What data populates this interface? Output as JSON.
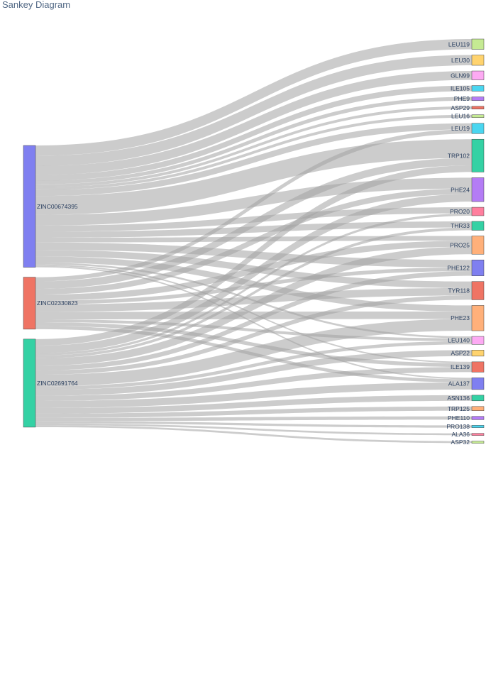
{
  "title": "Sankey Diagram",
  "colors": {
    "link": "#a3a3a3",
    "text": "#2a3f5f",
    "title": "#506784",
    "node_stroke": "#444444"
  },
  "chart_data": {
    "type": "sankey",
    "sources": [
      {
        "name": "ZINC00674395",
        "color": "#7f7ff0"
      },
      {
        "name": "ZINC02330823",
        "color": "#ef7464"
      },
      {
        "name": "ZINC02691764",
        "color": "#34d1a4"
      }
    ],
    "targets": [
      {
        "name": "LEU119",
        "color": "#c5ea93"
      },
      {
        "name": "LEU30",
        "color": "#ffd36e"
      },
      {
        "name": "GLN99",
        "color": "#fdaaf3"
      },
      {
        "name": "ILE105",
        "color": "#4ad6f0"
      },
      {
        "name": "PHE9",
        "color": "#b47cf5"
      },
      {
        "name": "ASP29",
        "color": "#ef7464"
      },
      {
        "name": "LEU16",
        "color": "#c5ea93"
      },
      {
        "name": "LEU19",
        "color": "#4ad6f0"
      },
      {
        "name": "TRP102",
        "color": "#34d1a4"
      },
      {
        "name": "PHE24",
        "color": "#b47cf5"
      },
      {
        "name": "PRO20",
        "color": "#ff7f9e"
      },
      {
        "name": "THR33",
        "color": "#34d1a4"
      },
      {
        "name": "PRO25",
        "color": "#ffb07a"
      },
      {
        "name": "PHE122",
        "color": "#7f7ff0"
      },
      {
        "name": "TYR118",
        "color": "#ef7464"
      },
      {
        "name": "PHE23",
        "color": "#ffb07a"
      },
      {
        "name": "LEU140",
        "color": "#fdaaf3"
      },
      {
        "name": "ASP22",
        "color": "#ffd36e"
      },
      {
        "name": "ILE139",
        "color": "#ef7464"
      },
      {
        "name": "ALA137",
        "color": "#7f7ff0"
      },
      {
        "name": "ASN136",
        "color": "#34d1a4"
      },
      {
        "name": "TRP125",
        "color": "#ffb07a"
      },
      {
        "name": "PHE110",
        "color": "#b47cf5"
      },
      {
        "name": "PRO138",
        "color": "#4ad6f0"
      },
      {
        "name": "ALA36",
        "color": "#ff7f9e"
      },
      {
        "name": "ASP32",
        "color": "#c5ea93"
      }
    ],
    "links": [
      {
        "source": "ZINC00674395",
        "target": "LEU119",
        "value": 2.2
      },
      {
        "source": "ZINC00674395",
        "target": "LEU30",
        "value": 2.2
      },
      {
        "source": "ZINC00674395",
        "target": "GLN99",
        "value": 1.9
      },
      {
        "source": "ZINC00674395",
        "target": "ILE105",
        "value": 1.2
      },
      {
        "source": "ZINC00674395",
        "target": "PHE9",
        "value": 0.8
      },
      {
        "source": "ZINC00674395",
        "target": "ASP29",
        "value": 0.6
      },
      {
        "source": "ZINC00674395",
        "target": "LEU16",
        "value": 0.6
      },
      {
        "source": "ZINC00674395",
        "target": "LEU19",
        "value": 1.3
      },
      {
        "source": "ZINC00674395",
        "target": "TRP102",
        "value": 4.0
      },
      {
        "source": "ZINC00674395",
        "target": "PHE24",
        "value": 2.3
      },
      {
        "source": "ZINC00674395",
        "target": "PRO20",
        "value": 1.3
      },
      {
        "source": "ZINC00674395",
        "target": "THR33",
        "value": 1.3
      },
      {
        "source": "ZINC00674395",
        "target": "PRO25",
        "value": 1.0
      },
      {
        "source": "ZINC00674395",
        "target": "PHE122",
        "value": 1.6
      },
      {
        "source": "ZINC00674395",
        "target": "TYR118",
        "value": 1.4
      },
      {
        "source": "ZINC00674395",
        "target": "PHE23",
        "value": 1.3
      },
      {
        "source": "ZINC00674395",
        "target": "LEU140",
        "value": 0.4
      },
      {
        "source": "ZINC00674395",
        "target": "ILE139",
        "value": 0.3
      },
      {
        "source": "ZINC00674395",
        "target": "ALA137",
        "value": 0.3
      },
      {
        "source": "ZINC02330823",
        "target": "LEU19",
        "value": 0.9
      },
      {
        "source": "ZINC02330823",
        "target": "TRP102",
        "value": 1.6
      },
      {
        "source": "ZINC02330823",
        "target": "PHE24",
        "value": 1.2
      },
      {
        "source": "ZINC02330823",
        "target": "PRO25",
        "value": 1.3
      },
      {
        "source": "ZINC02330823",
        "target": "PHE122",
        "value": 0.8
      },
      {
        "source": "ZINC02330823",
        "target": "TYR118",
        "value": 1.6
      },
      {
        "source": "ZINC02330823",
        "target": "PHE23",
        "value": 1.6
      },
      {
        "source": "ZINC02330823",
        "target": "LEU140",
        "value": 0.6
      },
      {
        "source": "ZINC02330823",
        "target": "ILE139",
        "value": 0.8
      },
      {
        "source": "ZINC02330823",
        "target": "ALA137",
        "value": 0.7
      },
      {
        "source": "ZINC02691764",
        "target": "TRP102",
        "value": 1.4
      },
      {
        "source": "ZINC02691764",
        "target": "PHE24",
        "value": 1.6
      },
      {
        "source": "ZINC02691764",
        "target": "PRO20",
        "value": 0.5
      },
      {
        "source": "ZINC02691764",
        "target": "THR33",
        "value": 0.6
      },
      {
        "source": "ZINC02691764",
        "target": "PRO25",
        "value": 1.6
      },
      {
        "source": "ZINC02691764",
        "target": "PHE122",
        "value": 1.0
      },
      {
        "source": "ZINC02691764",
        "target": "TYR118",
        "value": 0.9
      },
      {
        "source": "ZINC02691764",
        "target": "PHE23",
        "value": 2.5
      },
      {
        "source": "ZINC02691764",
        "target": "LEU140",
        "value": 0.7
      },
      {
        "source": "ZINC02691764",
        "target": "ASP22",
        "value": 1.3
      },
      {
        "source": "ZINC02691764",
        "target": "ILE139",
        "value": 1.1
      },
      {
        "source": "ZINC02691764",
        "target": "ALA137",
        "value": 1.5
      },
      {
        "source": "ZINC02691764",
        "target": "ASN136",
        "value": 1.2
      },
      {
        "source": "ZINC02691764",
        "target": "TRP125",
        "value": 0.9
      },
      {
        "source": "ZINC02691764",
        "target": "PHE110",
        "value": 0.7
      },
      {
        "source": "ZINC02691764",
        "target": "PRO138",
        "value": 0.5
      },
      {
        "source": "ZINC02691764",
        "target": "ALA36",
        "value": 0.4
      },
      {
        "source": "ZINC02691764",
        "target": "ASP32",
        "value": 0.4
      }
    ]
  }
}
